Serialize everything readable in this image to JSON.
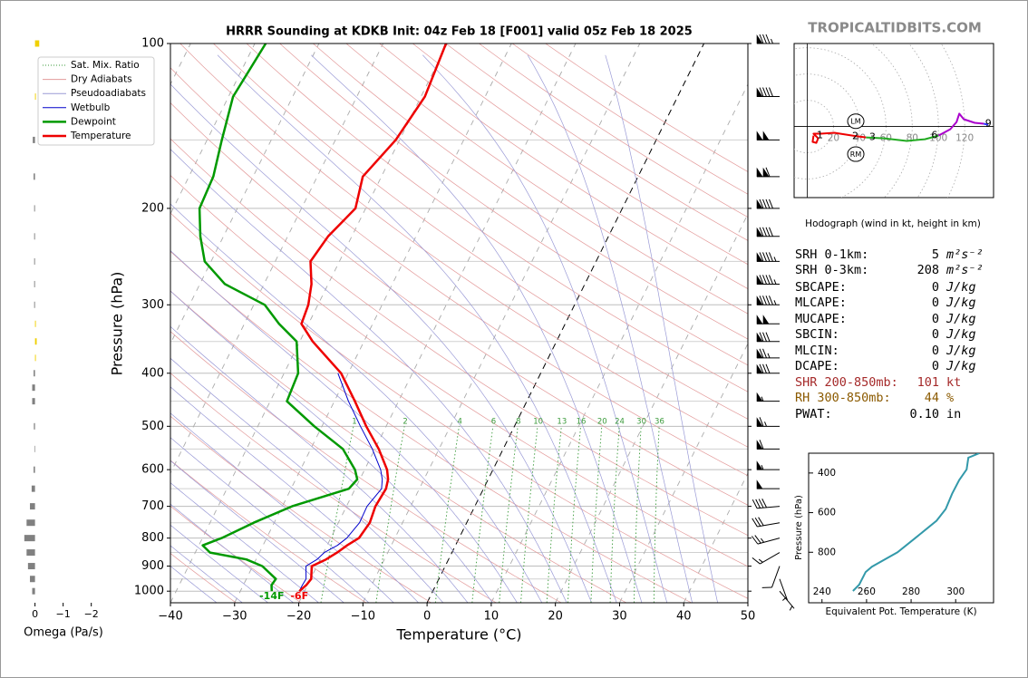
{
  "site": "TROPICALTIDBITS.COM",
  "indices": [
    {
      "label": "SRH 0-1km:",
      "value": "5",
      "unit": "m²s⁻²"
    },
    {
      "label": "SRH 0-3km:",
      "value": "208",
      "unit": "m²s⁻²"
    },
    {
      "label": "SBCAPE:",
      "value": "0",
      "unit": "J/kg"
    },
    {
      "label": "MLCAPE:",
      "value": "0",
      "unit": "J/kg"
    },
    {
      "label": "MUCAPE:",
      "value": "0",
      "unit": "J/kg"
    },
    {
      "label": "SBCIN:",
      "value": "0",
      "unit": "J/kg"
    },
    {
      "label": "MLCIN:",
      "value": "0",
      "unit": "J/kg"
    },
    {
      "label": "DCAPE:",
      "value": "0",
      "unit": "J/kg"
    },
    {
      "label": "SHR 200-850mb:",
      "value": "101",
      "unit": "kt",
      "color": "#a52a2a"
    },
    {
      "label": "RH 300-850mb:",
      "value": "44",
      "unit": "%",
      "color": "#8b5a00"
    },
    {
      "label": "PWAT:",
      "value": "0.10",
      "unit": "in"
    }
  ],
  "chart_data": [
    {
      "type": "omega",
      "xlabel": "Omega (Pa/s)",
      "xlim": [
        0.6,
        -2.3
      ],
      "xticks": [
        0,
        {
          "value": -1,
          "label": "−1"
        },
        {
          "value": -2,
          "label": "−2"
        }
      ],
      "ylim": [
        1050,
        100
      ],
      "pressure": [
        100,
        125,
        150,
        175,
        200,
        225,
        250,
        275,
        300,
        325,
        350,
        375,
        400,
        425,
        450,
        500,
        550,
        600,
        650,
        700,
        750,
        800,
        850,
        900,
        950,
        1000
      ],
      "values": [
        -0.15,
        -0.03,
        0.08,
        0.05,
        0.03,
        0.03,
        0.03,
        0.03,
        0.03,
        -0.03,
        -0.06,
        -0.03,
        0.05,
        0.1,
        0.1,
        0.04,
        0.02,
        0.05,
        0.12,
        0.18,
        0.3,
        0.38,
        0.3,
        0.25,
        0.18,
        0.1
      ],
      "colors": {
        "positive": "#808080",
        "negative": "#f0d000"
      }
    },
    {
      "type": "skewt",
      "title": "HRRR Sounding at KDKB Init: 04z Feb 18 [F001] valid 05z Feb 18 2025",
      "xlabel": "Temperature (°C)",
      "ylabel": "Pressure (hPa)",
      "xlim": [
        -40,
        50
      ],
      "ylim": [
        1050,
        100
      ],
      "xticks": [
        {
          "value": -40,
          "label": "−40"
        },
        {
          "value": -30,
          "label": "−30"
        },
        {
          "value": -20,
          "label": "−20"
        },
        {
          "value": -10,
          "label": "−10"
        },
        0,
        10,
        20,
        30,
        40,
        50
      ],
      "yticks": [
        100,
        200,
        300,
        400,
        500,
        600,
        700,
        800,
        900,
        1000
      ],
      "yticks_minor": [
        150,
        250,
        350,
        450,
        550,
        650,
        750,
        850,
        950
      ],
      "pressure": [
        100,
        125,
        150,
        175,
        200,
        225,
        250,
        275,
        300,
        325,
        350,
        400,
        450,
        500,
        550,
        600,
        625,
        650,
        700,
        750,
        800,
        825,
        850,
        875,
        900,
        950,
        975,
        1000
      ],
      "reference_lines": [
        {
          "name": "Sat. Mix. Ratio",
          "color": "#3a9a3a",
          "style": "dotted"
        },
        {
          "name": "Dry Adiabats",
          "color": "#e39a9a",
          "style": "solid"
        },
        {
          "name": "Pseudoadiabats",
          "color": "#9a9ad6",
          "style": "solid"
        }
      ],
      "mixing_ratios": [
        1,
        2,
        4,
        6,
        8,
        10,
        13,
        16,
        20,
        24,
        30,
        36
      ],
      "series": [
        {
          "name": "Wetbulb",
          "color": "#0000cc",
          "linewidth": 1,
          "values": [
            null,
            null,
            null,
            null,
            null,
            null,
            null,
            null,
            null,
            null,
            null,
            -31.6,
            -27.8,
            -24.0,
            -20.4,
            -17.5,
            -16.5,
            -15.9,
            -16.8,
            -16.7,
            -17.5,
            -18.4,
            -19.9,
            -20.5,
            -21.7,
            -20.7,
            -20.8,
            -20.8
          ]
        },
        {
          "name": "Dewpoint",
          "color": "#009900",
          "linewidth": 2.5,
          "surface_label": "-14F",
          "values": [
            -68.3,
            -69.3,
            -67.7,
            -66.2,
            -65.9,
            -63.6,
            -61.0,
            -56.1,
            -48.3,
            -44.6,
            -40.5,
            -37.8,
            -37.4,
            -31.2,
            -25.0,
            -21.5,
            -20.4,
            -21.0,
            -28.5,
            -33.2,
            -37.0,
            -39.4,
            -37.7,
            -31.5,
            -28.5,
            -25.4,
            -25.6,
            -25.1
          ]
        },
        {
          "name": "Temperature",
          "color": "#ee0000",
          "linewidth": 2.5,
          "surface_label": "-6F",
          "values": [
            -40.2,
            -39.4,
            -40.6,
            -42.9,
            -41.6,
            -43.7,
            -44.5,
            -42.6,
            -41.5,
            -41.1,
            -38.0,
            -31.1,
            -26.8,
            -23.1,
            -19.4,
            -16.5,
            -15.6,
            -15.2,
            -15.5,
            -15.1,
            -15.6,
            -16.9,
            -17.9,
            -19.1,
            -20.8,
            -19.9,
            -20.2,
            -20.8
          ]
        }
      ],
      "winds": {
        "pressure": [
          100,
          125,
          150,
          175,
          200,
          225,
          250,
          275,
          300,
          325,
          350,
          375,
          400,
          450,
          500,
          550,
          600,
          650,
          700,
          750,
          800,
          850,
          900,
          950,
          1000
        ],
        "speed": [
          85,
          90,
          100,
          110,
          90,
          90,
          95,
          95,
          95,
          100,
          80,
          75,
          80,
          55,
          65,
          60,
          55,
          50,
          40,
          30,
          25,
          15,
          10,
          5,
          5
        ],
        "direction": [
          270,
          270,
          270,
          270,
          270,
          270,
          270,
          270,
          270,
          270,
          270,
          270,
          270,
          270,
          270,
          270,
          270,
          270,
          265,
          260,
          255,
          240,
          200,
          160,
          140
        ]
      }
    },
    {
      "type": "hodograph",
      "caption": "Hodograph (wind in kt, height in km)",
      "xlim": [
        -10,
        142
      ],
      "ylim": [
        -54,
        63
      ],
      "xticks": [
        20,
        40,
        60,
        80,
        100,
        120
      ],
      "segments": [
        {
          "color": "#ee0000",
          "u": [
            4.8,
            4.1,
            6.9,
            8.3,
            4.8,
            10.3,
            20.7,
            34.5,
            44.8
          ],
          "v": [
            -6.9,
            -11.7,
            -12.4,
            -9.0,
            -5.5,
            -5.5,
            -4.8,
            -6.9,
            -8.3
          ]
        },
        {
          "color": "#22aa22",
          "u": [
            44.8,
            58.6,
            75.9,
            89.7,
            100.0
          ],
          "v": [
            -8.3,
            -9.0,
            -11.0,
            -9.7,
            -6.9
          ]
        },
        {
          "color": "#aa00cc",
          "u": [
            100.0,
            109.0,
            113.8,
            115.9,
            119.3,
            127.6,
            134.5
          ],
          "v": [
            -6.9,
            -2.1,
            3.4,
            9.7,
            5.5,
            2.8,
            2.1
          ]
        },
        {
          "color": "#3333ff",
          "u": [
            134.5,
            137.9
          ],
          "v": [
            2.1,
            1.4
          ]
        }
      ],
      "height_labels": {
        "values": [
          1,
          2,
          3,
          6,
          9
        ],
        "u": [
          9.7,
          36.6,
          49.7,
          97.0,
          138.0
        ],
        "v": [
          -6.9,
          -7.6,
          -8.3,
          -7.0,
          2.0
        ]
      },
      "storm_motion": [
        {
          "name": "LM",
          "u": 37,
          "v": 4
        },
        {
          "name": "RM",
          "u": 37,
          "v": -21
        }
      ]
    },
    {
      "type": "line",
      "xlabel": "Equivalent Pot. Temperature (K)",
      "ylabel": "Pressure (hPa)",
      "xlim": [
        234,
        317
      ],
      "ylim": [
        1055,
        300
      ],
      "xticks": [
        240,
        260,
        280,
        300
      ],
      "yticks": [
        400,
        600,
        800
      ],
      "color": "#3399aa",
      "x": [
        253.9,
        256.7,
        259.6,
        262.4,
        273.9,
        282.0,
        291.4,
        295.5,
        298.4,
        301.6,
        304.9,
        305.7,
        310.6
      ],
      "y": [
        995.5,
        963.6,
        900,
        872.7,
        800,
        727,
        641,
        582,
        504.5,
        436,
        382,
        323,
        300
      ]
    }
  ]
}
